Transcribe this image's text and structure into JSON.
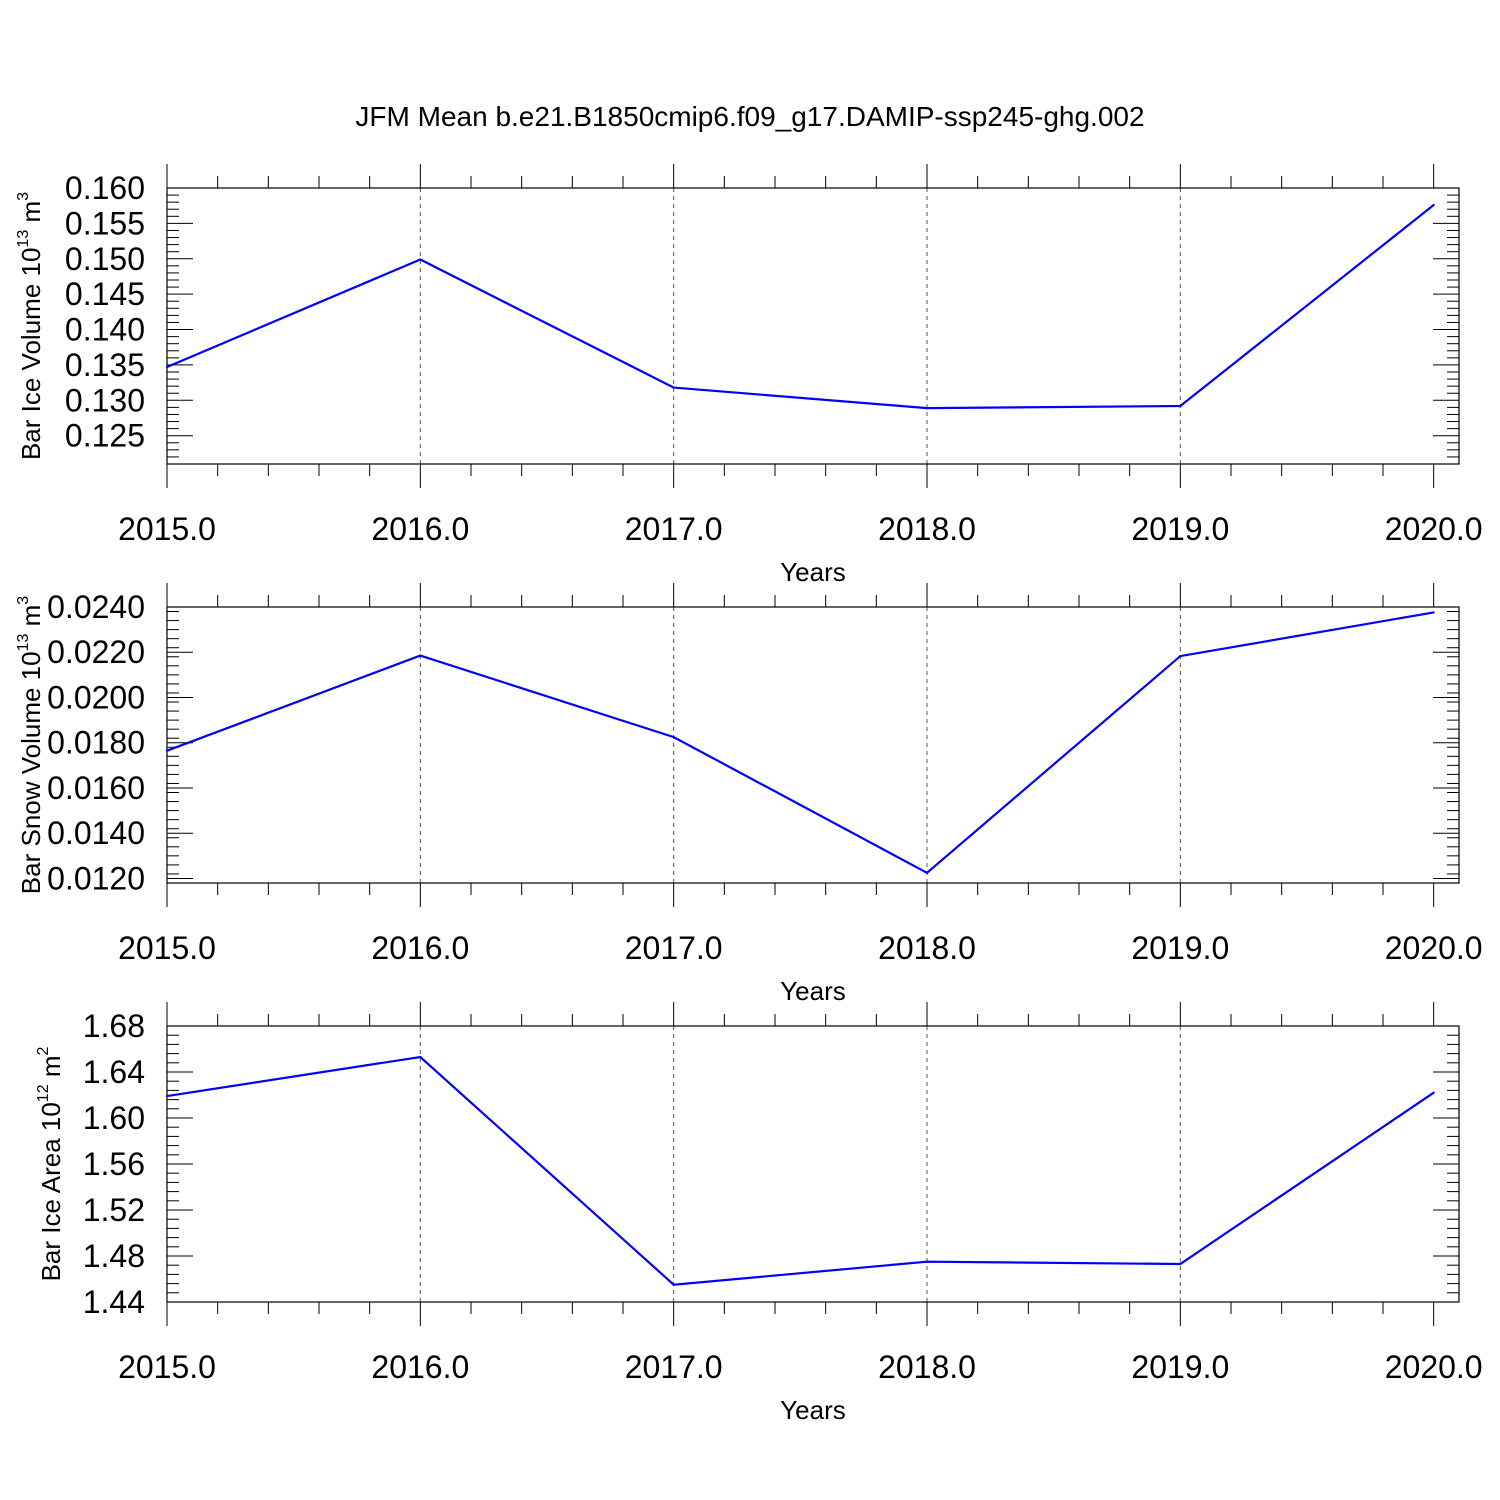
{
  "figure": {
    "title": "JFM Mean b.e21.B1850cmip6.f09_g17.DAMIP-ssp245-ghg.002",
    "line_color": "#0000ff"
  },
  "chart_data": [
    {
      "type": "line",
      "xlabel": "Years",
      "ylabel": "Bar Ice Volume 10",
      "ylabel_exp": "13",
      "ylabel_unit": " m",
      "ylabel_unit_exp": "3",
      "xlim": [
        2015,
        2020.1
      ],
      "ylim": [
        0.121,
        0.16
      ],
      "x": [
        2015,
        2016,
        2017,
        2018,
        2019,
        2020
      ],
      "xtick_labels": [
        "2015.0",
        "2016.0",
        "2017.0",
        "2018.0",
        "2019.0",
        "2020.0"
      ],
      "yticks": [
        0.125,
        0.13,
        0.135,
        0.14,
        0.145,
        0.15,
        0.155,
        0.16
      ],
      "ytick_labels": [
        "0.125",
        "0.130",
        "0.135",
        "0.140",
        "0.145",
        "0.150",
        "0.155",
        "0.160"
      ],
      "y_minor_step": 0.001,
      "series": [
        {
          "values": [
            0.1347,
            0.1499,
            0.1318,
            0.1289,
            0.1292,
            0.1576
          ]
        }
      ],
      "grid": "x-dashed"
    },
    {
      "type": "line",
      "xlabel": "Years",
      "ylabel": "Bar Snow Volume 10",
      "ylabel_exp": "13",
      "ylabel_unit": " m",
      "ylabel_unit_exp": "3",
      "xlim": [
        2015,
        2020.1
      ],
      "ylim": [
        0.0118,
        0.024
      ],
      "x": [
        2015,
        2016,
        2017,
        2018,
        2019,
        2020
      ],
      "xtick_labels": [
        "2015.0",
        "2016.0",
        "2017.0",
        "2018.0",
        "2019.0",
        "2020.0"
      ],
      "yticks": [
        0.012,
        0.014,
        0.016,
        0.018,
        0.02,
        0.022,
        0.024
      ],
      "ytick_labels": [
        "0.0120",
        "0.0140",
        "0.0160",
        "0.0180",
        "0.0200",
        "0.0220",
        "0.0240"
      ],
      "y_minor_step": 0.0004,
      "series": [
        {
          "values": [
            0.01765,
            0.02185,
            0.01825,
            0.01225,
            0.02183,
            0.02376
          ]
        }
      ],
      "grid": "x-dashed"
    },
    {
      "type": "line",
      "xlabel": "Years",
      "ylabel": "Bar Ice Area 10",
      "ylabel_exp": "12",
      "ylabel_unit": " m",
      "ylabel_unit_exp": "2",
      "xlim": [
        2015,
        2020.1
      ],
      "ylim": [
        1.44,
        1.68
      ],
      "x": [
        2015,
        2016,
        2017,
        2018,
        2019,
        2020
      ],
      "xtick_labels": [
        "2015.0",
        "2016.0",
        "2017.0",
        "2018.0",
        "2019.0",
        "2020.0"
      ],
      "yticks": [
        1.44,
        1.48,
        1.52,
        1.56,
        1.6,
        1.64,
        1.68
      ],
      "ytick_labels": [
        "1.44",
        "1.48",
        "1.52",
        "1.56",
        "1.60",
        "1.64",
        "1.68"
      ],
      "y_minor_step": 0.008,
      "series": [
        {
          "values": [
            1.619,
            1.653,
            1.455,
            1.475,
            1.473,
            1.622
          ]
        }
      ],
      "grid": "x-dashed"
    }
  ]
}
